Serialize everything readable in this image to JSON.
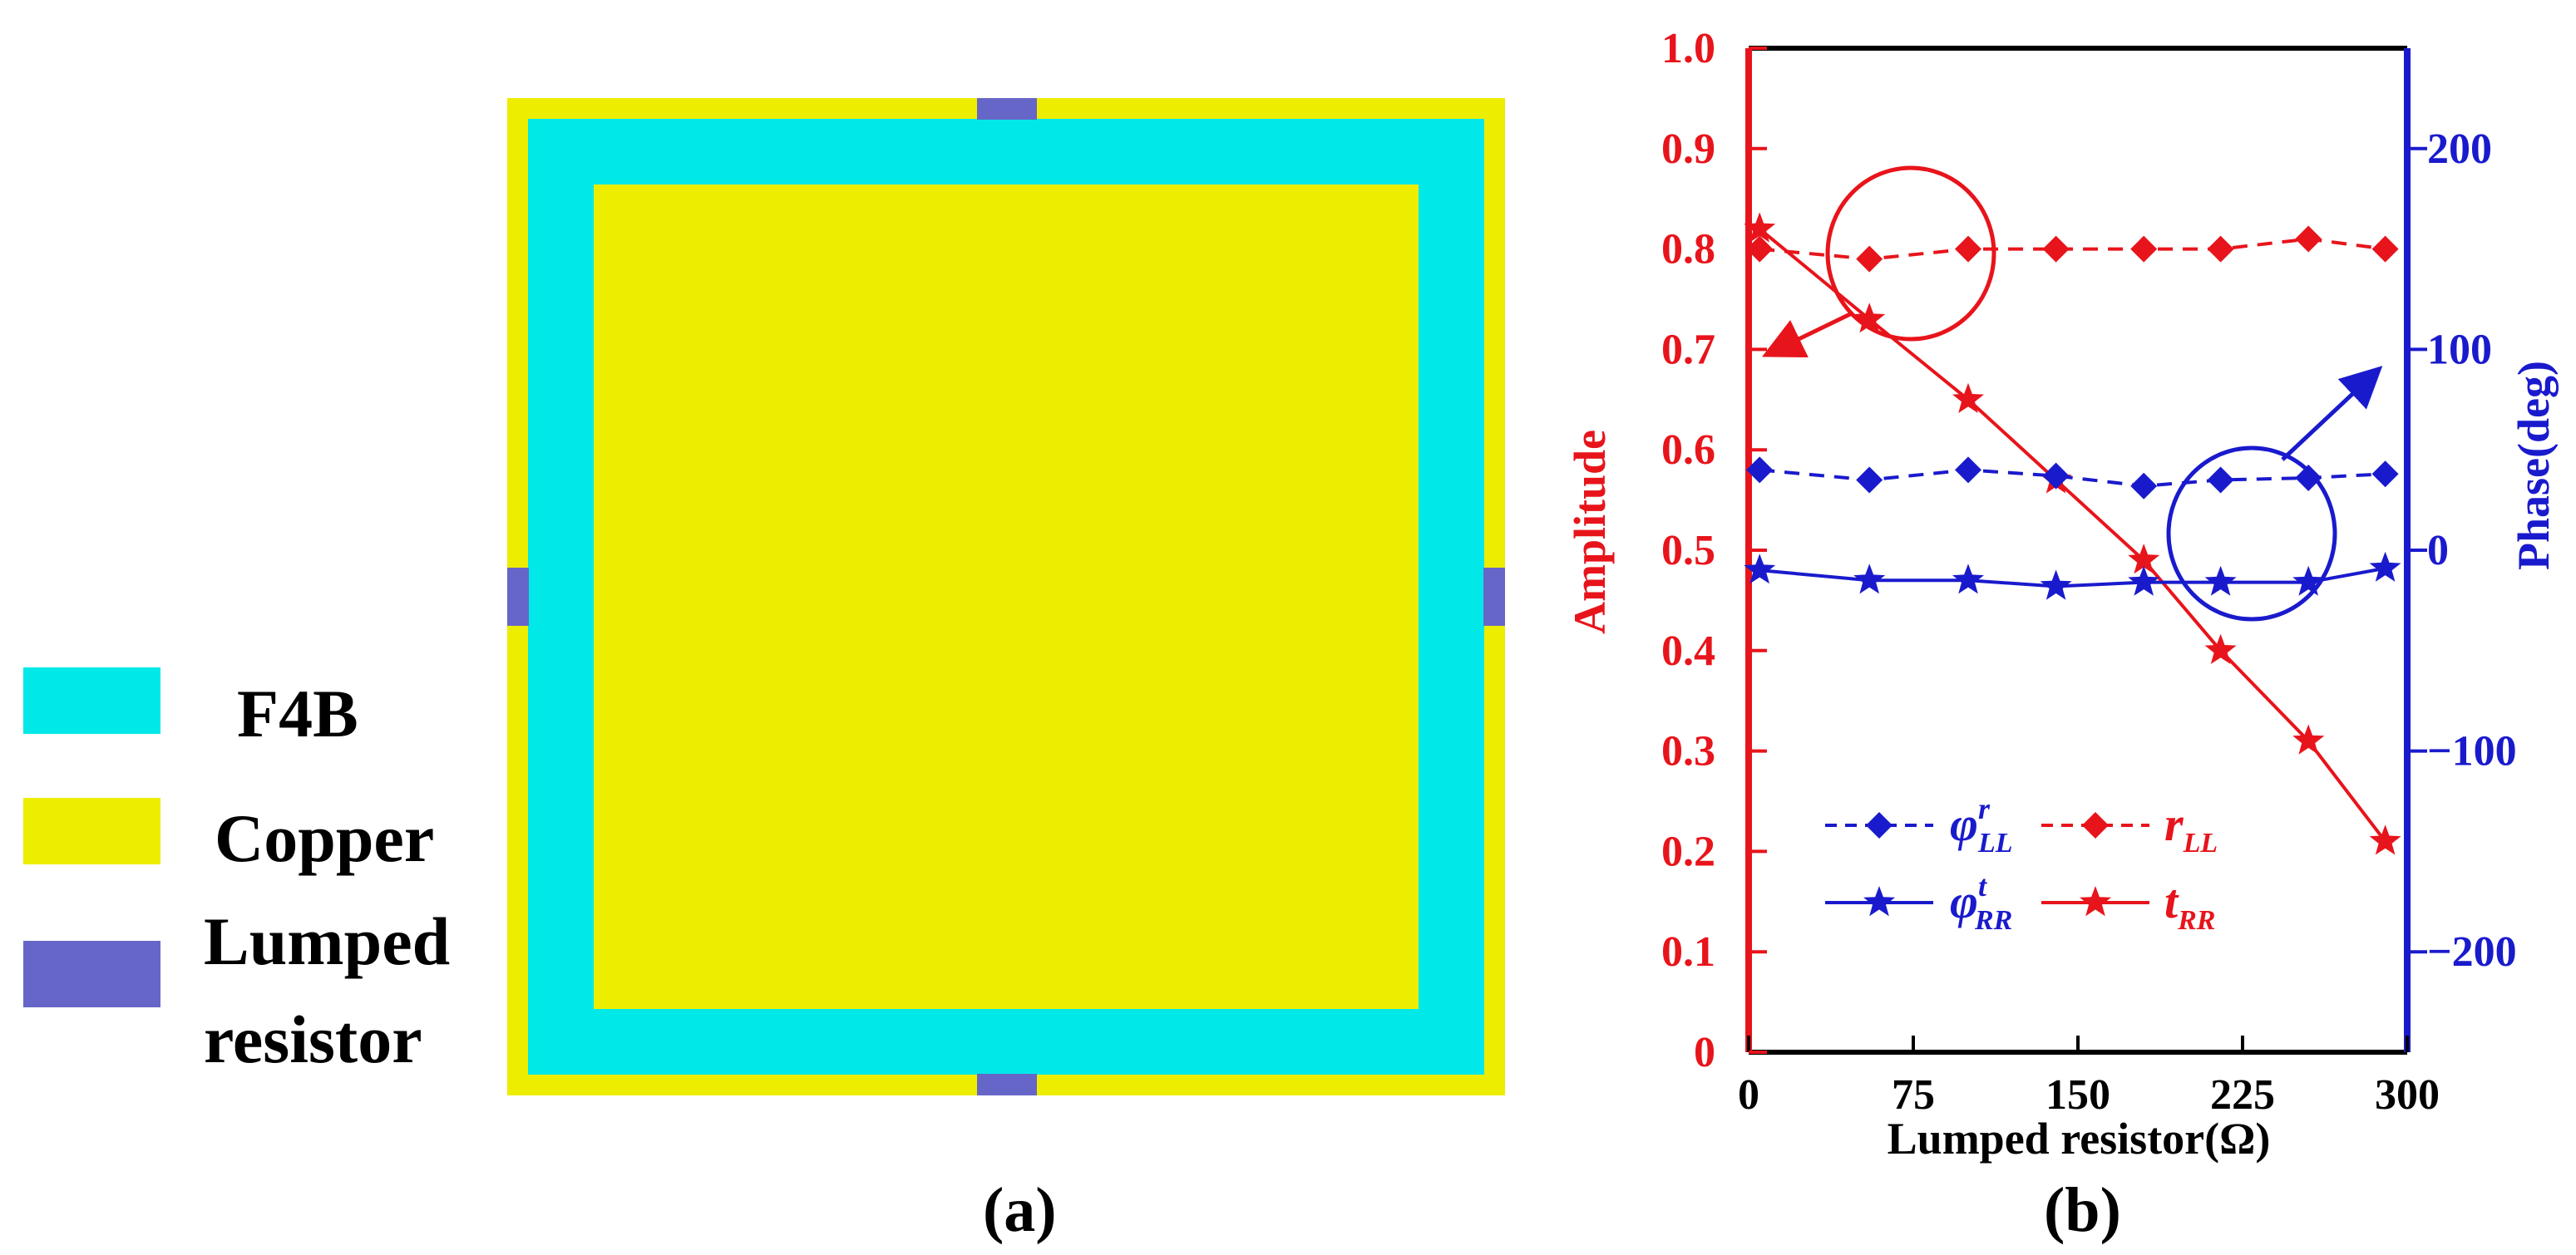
{
  "panel_a": {
    "caption": "(a)",
    "legend": [
      {
        "label": "F4B",
        "color": "#00E8E8"
      },
      {
        "label": "Copper",
        "color": "#EDED00"
      },
      {
        "label": "Lumped",
        "color": "#6666C8"
      },
      {
        "label": "resistor",
        "color": ""
      }
    ],
    "colors": {
      "copper": "#EDED00",
      "f4b": "#00E8E8",
      "resistor": "#6666C8"
    }
  },
  "panel_b": {
    "caption": "(b)"
  },
  "chart_data": {
    "type": "line",
    "xlabel": "Lumped resistor(Ω)",
    "ylabel_left": "Amplitude",
    "ylabel_right": "Phase(deg)",
    "xlim": [
      0,
      300
    ],
    "ylim_left": [
      0,
      1.0
    ],
    "ylim_right": [
      -250,
      250
    ],
    "x_ticks": [
      "0",
      "75",
      "150",
      "225",
      "300"
    ],
    "y_left_ticks": [
      "0",
      "0.1",
      "0.2",
      "0.3",
      "0.4",
      "0.5",
      "0.6",
      "0.7",
      "0.8",
      "0.9",
      "1.0"
    ],
    "y_right_ticks": [
      "−200",
      "−100",
      "0",
      "100",
      "200"
    ],
    "x": [
      5,
      55,
      100,
      140,
      180,
      215,
      255,
      290
    ],
    "series": [
      {
        "name": "r_LL",
        "axis": "left",
        "color": "#E8141B",
        "style": "dashed",
        "marker": "diamond",
        "values": [
          0.8,
          0.79,
          0.8,
          0.8,
          0.8,
          0.8,
          0.81,
          0.8
        ]
      },
      {
        "name": "t_RR",
        "axis": "left",
        "color": "#E8141B",
        "style": "solid",
        "marker": "star",
        "values": [
          0.82,
          0.73,
          0.65,
          0.57,
          0.49,
          0.4,
          0.31,
          0.21
        ]
      },
      {
        "name": "φr_LL",
        "axis": "right",
        "color": "#1A1ACD",
        "style": "dashed",
        "marker": "diamond",
        "values": [
          40,
          35,
          40,
          37,
          32,
          35,
          36,
          38
        ]
      },
      {
        "name": "φt_RR",
        "axis": "right",
        "color": "#1A1ACD",
        "style": "solid",
        "marker": "star",
        "values": [
          -10,
          -15,
          -15,
          -18,
          -16,
          -16,
          -16,
          -9
        ]
      }
    ],
    "legend": [
      {
        "base": "φ",
        "sup": "r",
        "sub": "LL",
        "series": "φr_LL"
      },
      {
        "base": "r",
        "sup": "",
        "sub": "LL",
        "series": "r_LL"
      },
      {
        "base": "φ",
        "sup": "t",
        "sub": "RR",
        "series": "φt_RR"
      },
      {
        "base": "t",
        "sup": "",
        "sub": "RR",
        "series": "t_RR"
      }
    ],
    "colors": {
      "left_axis": "#E8141B",
      "right_axis": "#1A1ACD"
    }
  }
}
